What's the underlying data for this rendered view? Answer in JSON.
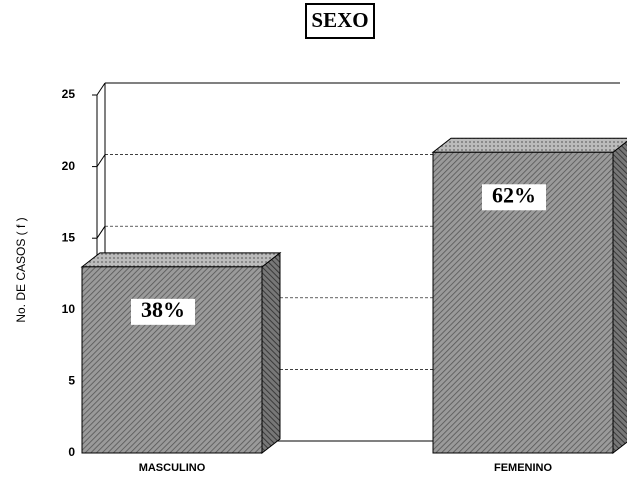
{
  "chart_data": {
    "type": "bar3d",
    "title": "SEXO",
    "y_label": "No. DE CASOS ( f )",
    "categories": [
      "MASCULINO",
      "FEMENINO"
    ],
    "values": [
      13,
      21
    ],
    "annotations": [
      "38%",
      "62%"
    ],
    "color": "#8c8c8c",
    "ylim": [
      0,
      25
    ],
    "yticks": [
      0,
      5,
      10,
      15,
      20,
      25
    ],
    "grid": true
  }
}
